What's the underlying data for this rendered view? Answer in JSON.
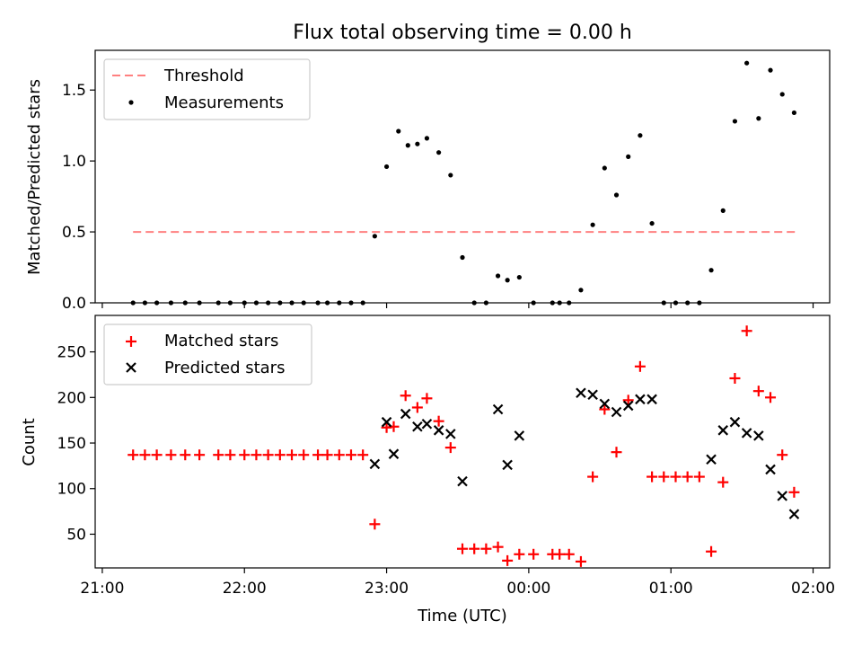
{
  "title": "Flux total observing time = 0.00 h",
  "colors": {
    "threshold": "#ff8080",
    "measurements": "#000000",
    "matched": "#ff0000",
    "predicted": "#000000"
  },
  "chart_data": [
    {
      "type": "scatter",
      "panel": "top",
      "ylabel": "Matched/Predicted stars",
      "xlim": [
        "20:57",
        "02:07"
      ],
      "ylim": [
        0,
        1.78
      ],
      "yticks": [
        "0.0",
        "0.5",
        "1.0",
        "1.5"
      ],
      "legend": {
        "position": "top-left",
        "entries": [
          "Threshold",
          "Measurements"
        ]
      },
      "threshold": {
        "name": "Threshold",
        "y": 0.5,
        "x_start": "21:13",
        "x_end": "01:53",
        "style": "dashed"
      },
      "series": [
        {
          "name": "Measurements",
          "marker": "dot",
          "points": [
            [
              "21:13",
              0
            ],
            [
              "21:18",
              0
            ],
            [
              "21:23",
              0
            ],
            [
              "21:29",
              0
            ],
            [
              "21:35",
              0
            ],
            [
              "21:41",
              0
            ],
            [
              "21:49",
              0
            ],
            [
              "21:54",
              0
            ],
            [
              "22:00",
              0
            ],
            [
              "22:05",
              0
            ],
            [
              "22:10",
              0
            ],
            [
              "22:15",
              0
            ],
            [
              "22:20",
              0
            ],
            [
              "22:25",
              0
            ],
            [
              "22:31",
              0
            ],
            [
              "22:35",
              0
            ],
            [
              "22:40",
              0
            ],
            [
              "22:45",
              0
            ],
            [
              "22:50",
              0
            ],
            [
              "22:55",
              0.47
            ],
            [
              "23:00",
              0.96
            ],
            [
              "23:05",
              1.21
            ],
            [
              "23:09",
              1.11
            ],
            [
              "23:13",
              1.12
            ],
            [
              "23:17",
              1.16
            ],
            [
              "23:22",
              1.06
            ],
            [
              "23:27",
              0.9
            ],
            [
              "23:32",
              0.32
            ],
            [
              "23:37",
              0
            ],
            [
              "23:42",
              0
            ],
            [
              "23:47",
              0.19
            ],
            [
              "23:51",
              0.16
            ],
            [
              "23:56",
              0.18
            ],
            [
              "00:02",
              0
            ],
            [
              "00:10",
              0
            ],
            [
              "00:13",
              0
            ],
            [
              "00:17",
              0
            ],
            [
              "00:22",
              0.09
            ],
            [
              "00:27",
              0.55
            ],
            [
              "00:32",
              0.95
            ],
            [
              "00:37",
              0.76
            ],
            [
              "00:42",
              1.03
            ],
            [
              "00:47",
              1.18
            ],
            [
              "00:52",
              0.56
            ],
            [
              "00:57",
              0
            ],
            [
              "01:02",
              0
            ],
            [
              "01:07",
              0
            ],
            [
              "01:12",
              0
            ],
            [
              "01:17",
              0.23
            ],
            [
              "01:22",
              0.65
            ],
            [
              "01:27",
              1.28
            ],
            [
              "01:32",
              1.69
            ],
            [
              "01:37",
              1.3
            ],
            [
              "01:42",
              1.64
            ],
            [
              "01:47",
              1.47
            ],
            [
              "01:52",
              1.34
            ]
          ]
        }
      ]
    },
    {
      "type": "scatter",
      "panel": "bottom",
      "xlabel": "Time (UTC)",
      "ylabel": "Count",
      "xlim": [
        "20:57",
        "02:07"
      ],
      "ylim": [
        13,
        290
      ],
      "xticks": [
        "21:00",
        "22:00",
        "23:00",
        "00:00",
        "01:00",
        "02:00"
      ],
      "yticks": [
        "50",
        "100",
        "150",
        "200",
        "250"
      ],
      "legend": {
        "position": "top-left",
        "entries": [
          "Matched stars",
          "Predicted stars"
        ]
      },
      "series": [
        {
          "name": "Matched stars",
          "marker": "plus",
          "points": [
            [
              "21:13",
              137
            ],
            [
              "21:18",
              137
            ],
            [
              "21:23",
              137
            ],
            [
              "21:29",
              137
            ],
            [
              "21:35",
              137
            ],
            [
              "21:41",
              137
            ],
            [
              "21:49",
              137
            ],
            [
              "21:54",
              137
            ],
            [
              "22:00",
              137
            ],
            [
              "22:05",
              137
            ],
            [
              "22:10",
              137
            ],
            [
              "22:15",
              137
            ],
            [
              "22:20",
              137
            ],
            [
              "22:25",
              137
            ],
            [
              "22:31",
              137
            ],
            [
              "22:35",
              137
            ],
            [
              "22:40",
              137
            ],
            [
              "22:45",
              137
            ],
            [
              "22:50",
              137
            ],
            [
              "22:55",
              61
            ],
            [
              "23:00",
              167
            ],
            [
              "23:03",
              168
            ],
            [
              "23:08",
              202
            ],
            [
              "23:13",
              189
            ],
            [
              "23:17",
              199
            ],
            [
              "23:22",
              174
            ],
            [
              "23:27",
              145
            ],
            [
              "23:32",
              34
            ],
            [
              "23:37",
              34
            ],
            [
              "23:42",
              34
            ],
            [
              "23:47",
              36
            ],
            [
              "23:51",
              21
            ],
            [
              "23:56",
              28
            ],
            [
              "00:02",
              28
            ],
            [
              "00:10",
              28
            ],
            [
              "00:13",
              28
            ],
            [
              "00:17",
              28
            ],
            [
              "00:22",
              20
            ],
            [
              "00:27",
              113
            ],
            [
              "00:32",
              187
            ],
            [
              "00:37",
              140
            ],
            [
              "00:42",
              197
            ],
            [
              "00:47",
              234
            ],
            [
              "00:52",
              113
            ],
            [
              "00:57",
              113
            ],
            [
              "01:02",
              113
            ],
            [
              "01:07",
              113
            ],
            [
              "01:12",
              113
            ],
            [
              "01:17",
              31
            ],
            [
              "01:22",
              107
            ],
            [
              "01:27",
              221
            ],
            [
              "01:32",
              273
            ],
            [
              "01:37",
              207
            ],
            [
              "01:42",
              200
            ],
            [
              "01:47",
              137
            ],
            [
              "01:52",
              96
            ]
          ]
        },
        {
          "name": "Predicted stars",
          "marker": "x",
          "points": [
            [
              "22:55",
              127
            ],
            [
              "23:00",
              173
            ],
            [
              "23:03",
              138
            ],
            [
              "23:08",
              182
            ],
            [
              "23:13",
              168
            ],
            [
              "23:17",
              171
            ],
            [
              "23:22",
              164
            ],
            [
              "23:27",
              160
            ],
            [
              "23:32",
              108
            ],
            [
              "23:47",
              187
            ],
            [
              "23:51",
              126
            ],
            [
              "23:56",
              158
            ],
            [
              "00:22",
              205
            ],
            [
              "00:27",
              203
            ],
            [
              "00:32",
              193
            ],
            [
              "00:37",
              184
            ],
            [
              "00:42",
              191
            ],
            [
              "00:47",
              198
            ],
            [
              "00:52",
              198
            ],
            [
              "01:17",
              132
            ],
            [
              "01:22",
              164
            ],
            [
              "01:27",
              173
            ],
            [
              "01:32",
              161
            ],
            [
              "01:37",
              158
            ],
            [
              "01:42",
              121
            ],
            [
              "01:47",
              92
            ],
            [
              "01:52",
              72
            ]
          ]
        }
      ]
    }
  ]
}
